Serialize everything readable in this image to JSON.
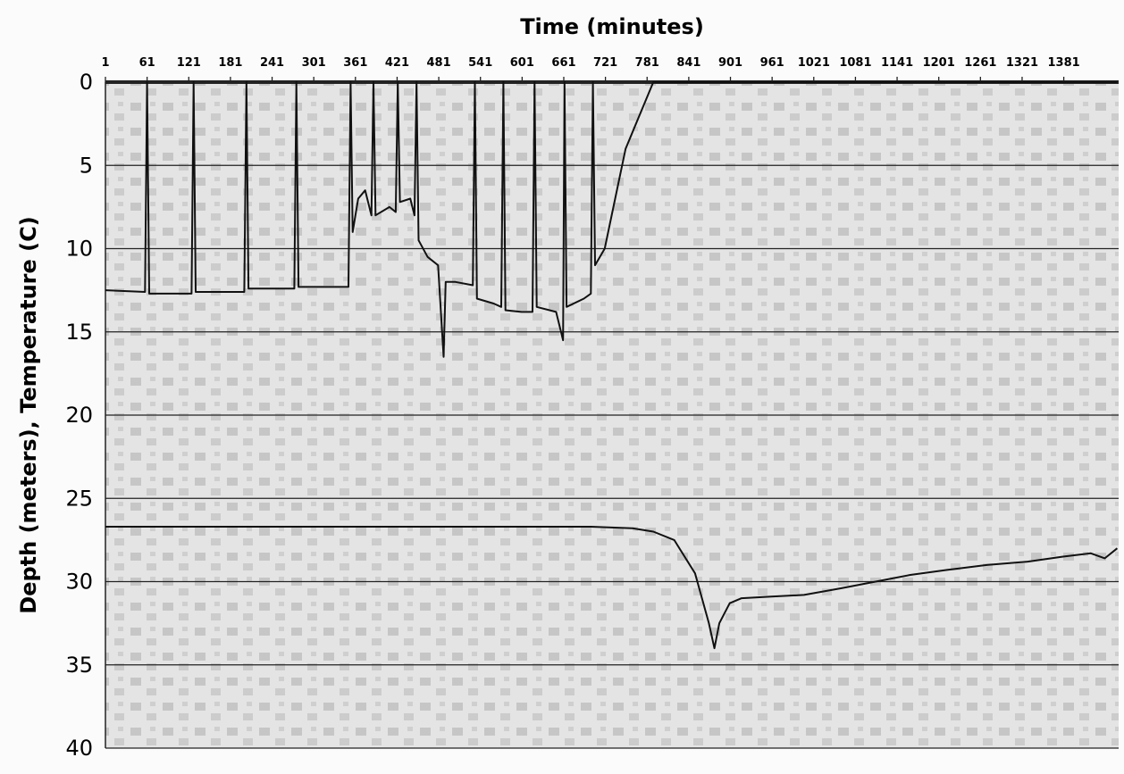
{
  "chart_data": {
    "type": "line",
    "title": "Time (minutes)",
    "y_label": "Depth (meters), Temperature (C)",
    "xlim": [
      1,
      1460
    ],
    "xticks": [
      1,
      61,
      121,
      181,
      241,
      301,
      361,
      421,
      481,
      541,
      601,
      661,
      721,
      781,
      841,
      901,
      961,
      1021,
      1081,
      1141,
      1201,
      1261,
      1321,
      1381
    ],
    "ylim": [
      0,
      40
    ],
    "yticks": [
      0,
      5,
      10,
      15,
      20,
      25,
      30,
      35,
      40
    ],
    "y_inverted": true,
    "grid": true,
    "series": [
      {
        "color": "#111111",
        "x": [
          1,
          58,
          61,
          64,
          125,
          128,
          131,
          201,
          204,
          207,
          273,
          276,
          279,
          351,
          354,
          357,
          365,
          375,
          384,
          387,
          390,
          410,
          419,
          422,
          425,
          440,
          446,
          449,
          452,
          465,
          480,
          488,
          491,
          505,
          530,
          533,
          536,
          560,
          571,
          574,
          577,
          600,
          616,
          619,
          622,
          650,
          660,
          662,
          665,
          690,
          700,
          703,
          706,
          720,
          735,
          750,
          770,
          790,
          900,
          1458
        ],
        "values": [
          12.5,
          12.6,
          0,
          12.7,
          12.7,
          0,
          12.6,
          12.6,
          0,
          12.4,
          12.4,
          0,
          12.3,
          12.3,
          0,
          9,
          7,
          6.5,
          8,
          0,
          8,
          7.5,
          7.8,
          0,
          7.2,
          7,
          8,
          0,
          9.5,
          10.5,
          11,
          16.5,
          12,
          12,
          12.2,
          0,
          13,
          13.3,
          13.5,
          0,
          13.7,
          13.8,
          13.8,
          0,
          13.5,
          13.8,
          15.5,
          0,
          13.5,
          13,
          12.7,
          0,
          11,
          10,
          7,
          4,
          2,
          0,
          0,
          0
        ]
      },
      {
        "color": "#111111",
        "x": [
          1,
          700,
          760,
          790,
          820,
          850,
          870,
          878,
          885,
          900,
          917,
          960,
          1007,
          1060,
          1110,
          1160,
          1213,
          1270,
          1329,
          1380,
          1420,
          1440,
          1458
        ],
        "values": [
          26.7,
          26.7,
          26.8,
          27,
          27.5,
          29.5,
          32.5,
          34,
          32.5,
          31.3,
          31,
          30.9,
          30.8,
          30.4,
          30,
          29.6,
          29.3,
          29,
          28.8,
          28.5,
          28.3,
          28.6,
          28
        ]
      }
    ]
  }
}
